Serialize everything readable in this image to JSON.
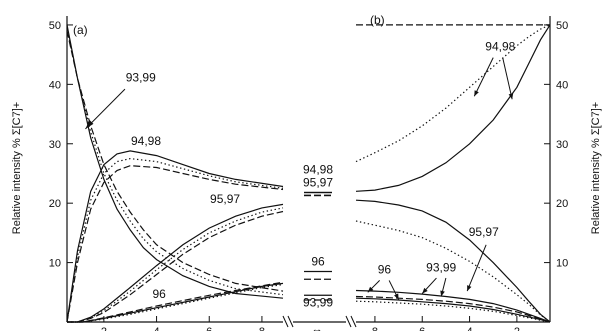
{
  "chart_data": {
    "type": "line",
    "panels": [
      {
        "label": "(a)",
        "x_ticks": [
          2,
          4,
          6,
          8
        ],
        "xlim": [
          0.6,
          8.8
        ],
        "ylim": [
          0,
          51
        ],
        "y_ticks": [
          10,
          20,
          30,
          40,
          50
        ],
        "ylabel": "Relative intensity % Σ[C7]+",
        "curves": [
          {
            "name": "93,99",
            "style": "solid",
            "x": [
              0.6,
              1,
              1.5,
              2,
              2.5,
              3,
              3.5,
              4,
              5,
              6,
              7,
              8.8
            ],
            "y": [
              50,
              41,
              31,
              24,
              19,
              15.5,
              12.5,
              10.5,
              7.8,
              6,
              4.8,
              4
            ]
          },
          {
            "name": "93,99",
            "style": "dashed",
            "x": [
              0.6,
              1,
              1.5,
              2,
              2.5,
              3,
              3.5,
              4,
              5,
              6,
              7,
              8.8
            ],
            "y": [
              49,
              41,
              33,
              26.5,
              22,
              18.5,
              15.5,
              13,
              10,
              8,
              6.5,
              5.2
            ]
          },
          {
            "name": "93,99",
            "style": "dotted",
            "x": [
              0.6,
              1,
              1.5,
              2,
              2.5,
              3,
              3.5,
              4,
              5,
              6,
              7,
              8.8
            ],
            "y": [
              49.5,
              41,
              32,
              25,
              20.5,
              17,
              14,
              11.8,
              9,
              7,
              5.6,
              4.6
            ]
          },
          {
            "name": "94,98",
            "style": "solid",
            "x": [
              0.6,
              1,
              1.5,
              2,
              2.5,
              3,
              4,
              5,
              6,
              7,
              8.8
            ],
            "y": [
              0,
              12,
              22,
              26.5,
              28.3,
              28.8,
              28,
              26.5,
              25,
              24,
              22.8
            ]
          },
          {
            "name": "94,98",
            "style": "dotted",
            "x": [
              0.6,
              1,
              1.5,
              2,
              2.5,
              3,
              4,
              5,
              6,
              7,
              8.8
            ],
            "y": [
              0,
              11,
              20.5,
              25,
              27,
              27.5,
              27,
              25.8,
              24.6,
              23.6,
              22.5
            ]
          },
          {
            "name": "94,98",
            "style": "dashed",
            "x": [
              0.6,
              1,
              1.5,
              2,
              2.5,
              3,
              4,
              5,
              6,
              7,
              8.8
            ],
            "y": [
              0,
              10,
              19,
              23.5,
              25.5,
              26.3,
              26,
              25,
              24,
              23.2,
              22.3
            ]
          },
          {
            "name": "95,97",
            "style": "solid",
            "x": [
              0.6,
              1,
              1.5,
              2,
              3,
              4,
              5,
              6,
              7,
              8,
              8.8
            ],
            "y": [
              0,
              0,
              0.8,
              2.2,
              5.8,
              9.5,
              13,
              15.8,
              17.8,
              19.2,
              19.8
            ]
          },
          {
            "name": "95,97",
            "style": "dotted",
            "x": [
              0.6,
              1,
              1.5,
              2,
              3,
              4,
              5,
              6,
              7,
              8,
              8.8
            ],
            "y": [
              0,
              0,
              0.7,
              1.9,
              5.2,
              8.8,
              12.2,
              15,
              17,
              18.5,
              19.2
            ]
          },
          {
            "name": "95,97",
            "style": "dashed",
            "x": [
              0.6,
              1,
              1.5,
              2,
              3,
              4,
              5,
              6,
              7,
              8,
              8.8
            ],
            "y": [
              0,
              0,
              0.6,
              1.6,
              4.6,
              8,
              11.4,
              14.2,
              16.3,
              17.8,
              18.6
            ]
          },
          {
            "name": "96",
            "style": "solid",
            "x": [
              0.6,
              1.2,
              2,
              3,
              4,
              5,
              6,
              7,
              8,
              8.8
            ],
            "y": [
              0,
              0,
              0.6,
              1.5,
              2.4,
              3.3,
              4.2,
              5.1,
              6,
              6.5
            ]
          },
          {
            "name": "96",
            "style": "dashed",
            "x": [
              0.6,
              1.2,
              2,
              3,
              4,
              5,
              6,
              7,
              8,
              8.8
            ],
            "y": [
              0,
              0,
              0.7,
              1.7,
              2.7,
              3.6,
              4.5,
              5.3,
              6.1,
              6.7
            ]
          },
          {
            "name": "96",
            "style": "dotted",
            "x": [
              0.6,
              1.2,
              2,
              3,
              4,
              5,
              6,
              7,
              8,
              8.8
            ],
            "y": [
              0,
              0,
              0.5,
              1.3,
              2.2,
              3.1,
              4,
              4.9,
              5.8,
              6.3
            ]
          }
        ],
        "labels": [
          {
            "text": "93,99",
            "x": 3.4,
            "y": 40.5
          },
          {
            "text": "94,98",
            "x": 3.6,
            "y": 29.8
          },
          {
            "text": "95,97",
            "x": 6.6,
            "y": 20
          },
          {
            "text": "96",
            "x": 4.1,
            "y": 4
          }
        ]
      },
      {
        "label": "∞",
        "x_ticks": [
          "∞"
        ],
        "ylim": [
          0,
          51
        ],
        "levels": [
          {
            "name": "94,98",
            "solid": 21.8,
            "dashed": 21.3
          },
          {
            "name": "95,97",
            "solid": 21.8,
            "dashed": 21.3
          },
          {
            "name": "96",
            "solid": 8.5,
            "dashed": 7.2
          },
          {
            "name": "93,99",
            "solid": 4.5,
            "dashed": 3.7
          }
        ],
        "labels": [
          {
            "text": "94,98",
            "y": 25
          },
          {
            "text": "95,97",
            "y": 22.8
          },
          {
            "text": "96",
            "y": 9.5
          },
          {
            "text": "93,99",
            "y": 2.6
          }
        ]
      },
      {
        "label": "(b)",
        "x_ticks": [
          8,
          6,
          4,
          2
        ],
        "xlim": [
          8.8,
          0.6
        ],
        "ylim": [
          0,
          51
        ],
        "y_ticks": [
          10,
          20,
          30,
          40,
          50
        ],
        "ylabel": "Relative intensity % Σ[C7]+",
        "curves": [
          {
            "name": "94,98",
            "style": "dashed",
            "x": [
              8.8,
              6,
              4,
              2,
              0.6
            ],
            "y": [
              50,
              50,
              50,
              50,
              50
            ]
          },
          {
            "name": "94,98",
            "style": "solid",
            "x": [
              8.8,
              8,
              7,
              6,
              5,
              4,
              3,
              2,
              1.5,
              1,
              0.6
            ],
            "y": [
              22,
              22.2,
              23,
              24.5,
              26.8,
              30,
              34,
              39.5,
              43.5,
              47.5,
              50
            ]
          },
          {
            "name": "94,98",
            "style": "dotted",
            "x": [
              8.8,
              8,
              7,
              6,
              5,
              4,
              3,
              2,
              1.5,
              1,
              0.6
            ],
            "y": [
              27,
              28.5,
              30.5,
              33,
              36,
              39.5,
              43,
              46.5,
              48,
              49.3,
              50
            ]
          },
          {
            "name": "95,97",
            "style": "solid",
            "x": [
              8.8,
              8,
              7,
              6,
              5,
              4,
              3,
              2,
              1.5,
              1,
              0.6
            ],
            "y": [
              20.5,
              20.3,
              19.7,
              18.7,
              16.8,
              13.8,
              10,
              5.8,
              3.5,
              1.3,
              0
            ]
          },
          {
            "name": "95,97",
            "style": "dotted",
            "x": [
              8.8,
              8,
              7,
              6,
              5,
              4,
              3,
              2,
              1.5,
              1,
              0.6
            ],
            "y": [
              17,
              16.3,
              15.4,
              14.2,
              12.4,
              10.2,
              7.6,
              4.6,
              3,
              1.2,
              0
            ]
          },
          {
            "name": "93,99",
            "style": "solid",
            "x": [
              8.8,
              8,
              7,
              6,
              5,
              4,
              3,
              2,
              1,
              0.6
            ],
            "y": [
              5.3,
              5.2,
              5,
              4.7,
              4.3,
              3.8,
              3.1,
              2,
              0.6,
              0
            ]
          },
          {
            "name": "93,99",
            "style": "dashed",
            "x": [
              8.8,
              8,
              7,
              6,
              5,
              4,
              3,
              2,
              1,
              0.6
            ],
            "y": [
              4.3,
              4.2,
              4,
              3.8,
              3.5,
              3.1,
              2.5,
              1.7,
              0.5,
              0
            ]
          },
          {
            "name": "96",
            "style": "solid",
            "x": [
              8.8,
              8,
              7,
              6,
              5,
              4,
              3,
              2,
              1,
              0.6
            ],
            "y": [
              4,
              3.9,
              3.7,
              3.4,
              3.1,
              2.7,
              2.1,
              1.3,
              0.4,
              0
            ]
          },
          {
            "name": "96",
            "style": "dotted",
            "x": [
              8.8,
              8,
              7,
              6,
              5,
              4,
              3,
              2,
              1,
              0.6
            ],
            "y": [
              3.5,
              3.4,
              3.2,
              3,
              2.7,
              2.3,
              1.8,
              1.1,
              0.3,
              0
            ]
          }
        ],
        "labels": [
          {
            "text": "94,98",
            "x": 2.7,
            "y": 45.7
          },
          {
            "text": "95,97",
            "x": 3.4,
            "y": 14.5
          },
          {
            "text": "93,99",
            "x": 5.2,
            "y": 8.5
          },
          {
            "text": "96",
            "x": 7.6,
            "y": 8.2
          }
        ]
      }
    ]
  }
}
